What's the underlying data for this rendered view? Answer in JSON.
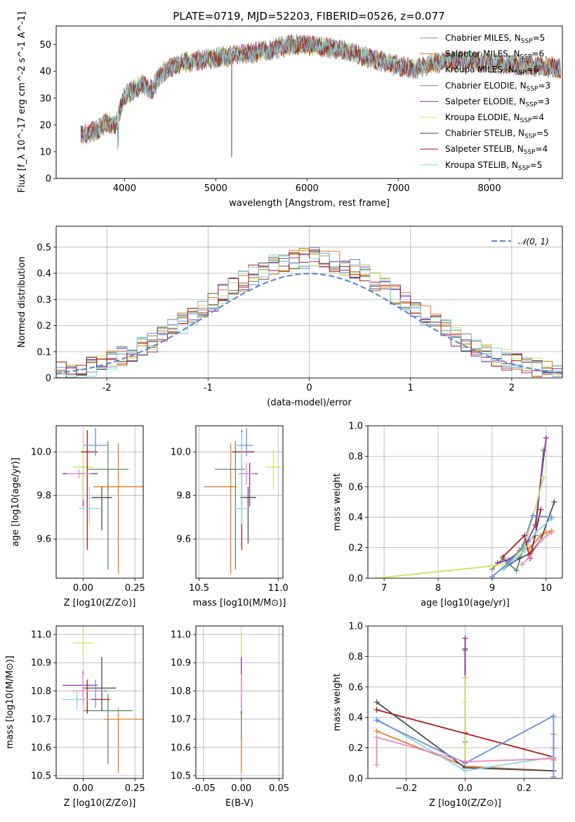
{
  "title": "PLATE=0719, MJD=52203, FIBERID=0526, z=0.077",
  "colors": [
    "#6a8fd8",
    "#e87d26",
    "#c77a1c",
    "#5f8e6a",
    "#8e30a9",
    "#cfe35a",
    "#4d4d4d",
    "#b01a1a",
    "#8ad6e8"
  ],
  "colors_panels": [
    "#e87d26",
    "#5f8e6a",
    "#8e30a9",
    "#cfe35a",
    "#4d4d4d",
    "#b01a1a",
    "#8ad6e8",
    "#6a8fd8",
    "#e78ac3"
  ],
  "chart_data": [
    {
      "id": "spectrum",
      "type": "line",
      "xlabel": "wavelength [Angstrom, rest frame]",
      "ylabel": "Flux [f_λ 10^-17 erg cm^-2 s^-1 A^-1]",
      "xlim": [
        3250,
        8800
      ],
      "ylim": [
        0,
        57
      ],
      "xticks": [
        4000,
        5000,
        6000,
        7000,
        8000
      ],
      "yticks": [
        0,
        10,
        20,
        30,
        40,
        50
      ],
      "grid": false,
      "legend_position": "top-right",
      "legend": [
        {
          "model": "Chabrier MILES",
          "n": "5"
        },
        {
          "model": "Salpeter MILES",
          "n": "6"
        },
        {
          "model": "Kroupa MILES",
          "n": "6"
        },
        {
          "model": "Chabrier ELODIE",
          "n": "3"
        },
        {
          "model": "Salpeter ELODIE",
          "n": "3"
        },
        {
          "model": "Kroupa ELODIE",
          "n": "4"
        },
        {
          "model": "Chabrier STELIB",
          "n": "5"
        },
        {
          "model": "Salpeter STELIB",
          "n": "4"
        },
        {
          "model": "Kroupa STELIB",
          "n": "5"
        }
      ],
      "continuum": [
        [
          3520,
          16
        ],
        [
          3600,
          17
        ],
        [
          3700,
          18
        ],
        [
          3800,
          21
        ],
        [
          3900,
          20
        ],
        [
          4000,
          31
        ],
        [
          4100,
          33
        ],
        [
          4200,
          35
        ],
        [
          4300,
          33
        ],
        [
          4400,
          39
        ],
        [
          4500,
          41
        ],
        [
          4600,
          43
        ],
        [
          4800,
          44
        ],
        [
          5000,
          45
        ],
        [
          5200,
          46
        ],
        [
          5400,
          47
        ],
        [
          5600,
          48
        ],
        [
          5800,
          50
        ],
        [
          6000,
          50
        ],
        [
          6200,
          49
        ],
        [
          6400,
          48
        ],
        [
          6600,
          46
        ],
        [
          6800,
          44
        ],
        [
          7000,
          42
        ],
        [
          7200,
          41
        ],
        [
          7400,
          43
        ],
        [
          7600,
          44
        ],
        [
          7800,
          44
        ],
        [
          8000,
          43
        ],
        [
          8200,
          43
        ],
        [
          8400,
          42
        ],
        [
          8600,
          42
        ],
        [
          8780,
          41
        ]
      ]
    },
    {
      "id": "residuals",
      "type": "histogram",
      "xlabel": "(data-model)/error",
      "ylabel": "Normed distribution",
      "xlim": [
        -2.5,
        2.5
      ],
      "ylim": [
        0,
        0.58
      ],
      "xticks": [
        -2,
        -1,
        0,
        1,
        2
      ],
      "yticks": [
        0.0,
        0.1,
        0.2,
        0.3,
        0.4,
        0.5
      ],
      "grid": true,
      "bin_width": 0.1,
      "legend": "𝒩(0, 1)",
      "normal_color": "#5b8bd9"
    },
    {
      "id": "age-vs-z",
      "type": "errorbar",
      "xlabel": "Z [log10(Z/Z⊙)]",
      "ylabel": "age [log10(age/yr)]",
      "xlim": [
        -0.13,
        0.29
      ],
      "ylim": [
        9.42,
        10.12
      ],
      "xticks": [
        -0.0,
        0.25
      ],
      "xtick_labels": [
        "0.00",
        "0.25"
      ],
      "yticks": [
        9.6,
        9.8,
        10.0
      ],
      "ytick_labels": [
        "9.6",
        "9.8",
        "10.0"
      ],
      "grid": true,
      "points": [
        {
          "x": 0.17,
          "y": 9.84,
          "xerr": [
            0.12,
            0.12
          ],
          "yerr": [
            0.4,
            0.2
          ]
        },
        {
          "x": 0.12,
          "y": 9.92,
          "xerr": [
            0.1,
            0.1
          ],
          "yerr": [
            0.46,
            0.13
          ]
        },
        {
          "x": 0.0,
          "y": 9.9,
          "xerr": [
            0.1,
            0.07
          ],
          "yerr": [
            0.15,
            0.05
          ]
        },
        {
          "x": 0.0,
          "y": 9.93,
          "xerr": [
            0.05,
            0.05
          ],
          "yerr": [
            0.15,
            0.08
          ]
        },
        {
          "x": 0.09,
          "y": 9.79,
          "xerr": [
            0.05,
            0.05
          ],
          "yerr": [
            0.15,
            0.05
          ]
        },
        {
          "x": 0.02,
          "y": 10.0,
          "xerr": [
            0.03,
            0.05
          ],
          "yerr": [
            0.45,
            0.1
          ]
        },
        {
          "x": 0.03,
          "y": 9.74,
          "xerr": [
            0.05,
            0.05
          ],
          "yerr": [
            0.07,
            0.1
          ]
        },
        {
          "x": 0.06,
          "y": 10.03,
          "xerr": [
            0.06,
            0.06
          ],
          "yerr": [
            0.05,
            0.08
          ]
        },
        {
          "x": -0.02,
          "y": 9.9,
          "xerr": [
            0.06,
            0.06
          ],
          "yerr": [
            0.02,
            0.02
          ]
        }
      ]
    },
    {
      "id": "age-vs-mass",
      "type": "errorbar",
      "xlabel": "mass [log10(M/M⊙)]",
      "ylabel": "",
      "xlim": [
        10.48,
        11.03
      ],
      "ylim": [
        9.42,
        10.12
      ],
      "xticks": [
        10.5,
        11.0
      ],
      "xtick_labels": [
        "10.5",
        "11.0"
      ],
      "yticks": [
        9.6,
        9.8,
        10.0
      ],
      "ytick_labels": [
        "9.6",
        "9.8",
        "10.0"
      ],
      "grid": true,
      "points": [
        {
          "x": 10.7,
          "y": 9.84,
          "xerr": [
            0.17,
            0.04
          ],
          "yerr": [
            0.4,
            0.2
          ]
        },
        {
          "x": 10.73,
          "y": 9.92,
          "xerr": [
            0.13,
            0.06
          ],
          "yerr": [
            0.46,
            0.13
          ]
        },
        {
          "x": 10.82,
          "y": 9.9,
          "xerr": [
            0.04,
            0.05
          ],
          "yerr": [
            0.15,
            0.05
          ]
        },
        {
          "x": 10.97,
          "y": 9.93,
          "xerr": [
            0.05,
            0.05
          ],
          "yerr": [
            0.1,
            0.08
          ]
        },
        {
          "x": 10.81,
          "y": 9.79,
          "xerr": [
            0.05,
            0.05
          ],
          "yerr": [
            0.21,
            0.05
          ]
        },
        {
          "x": 10.77,
          "y": 10.0,
          "xerr": [
            0.06,
            0.08
          ],
          "yerr": [
            0.45,
            0.1
          ]
        },
        {
          "x": 10.77,
          "y": 9.74,
          "xerr": [
            0.04,
            0.03
          ],
          "yerr": [
            0.07,
            0.35
          ]
        },
        {
          "x": 10.8,
          "y": 10.03,
          "xerr": [
            0.06,
            0.04
          ],
          "yerr": [
            0.05,
            0.08
          ]
        },
        {
          "x": 10.8,
          "y": 9.9,
          "xerr": [
            0.05,
            0.05
          ],
          "yerr": [
            0.05,
            0.05
          ]
        }
      ]
    },
    {
      "id": "weight-vs-age",
      "type": "line",
      "xlabel": "age [log10(age/yr)]",
      "ylabel": "mass weight",
      "xlim": [
        6.7,
        10.3
      ],
      "ylim": [
        0,
        1.0
      ],
      "xticks": [
        7,
        8,
        9,
        10
      ],
      "xtick_labels": [
        "7",
        "8",
        "9",
        "10"
      ],
      "yticks": [
        0.0,
        0.2,
        0.4,
        0.6,
        0.8,
        1.0
      ],
      "ytick_labels": [
        "0.0",
        "0.2",
        "0.4",
        "0.6",
        "0.8",
        "1.0"
      ],
      "grid": true,
      "series": [
        {
          "x": [
            9.3,
            9.5,
            9.7,
            9.9,
            10.0,
            10.1
          ],
          "y": [
            0.1,
            0.18,
            0.2,
            0.28,
            0.3,
            0.31
          ]
        },
        {
          "x": [
            9.0,
            9.2,
            9.45,
            9.6,
            9.8,
            9.95
          ],
          "y": [
            0.06,
            0.13,
            0.05,
            0.22,
            0.28,
            0.84
          ]
        },
        {
          "x": [
            9.1,
            9.3,
            9.6,
            9.8,
            10.0
          ],
          "y": [
            0.1,
            0.12,
            0.2,
            0.35,
            0.92
          ]
        },
        {
          "x": [
            6.85,
            9.0,
            9.3,
            9.6,
            9.95
          ],
          "y": [
            0.0,
            0.08,
            0.1,
            0.2,
            0.66
          ]
        },
        {
          "x": [
            9.2,
            9.5,
            9.7,
            9.9,
            10.15
          ],
          "y": [
            0.06,
            0.13,
            0.16,
            0.25,
            0.5
          ]
        },
        {
          "x": [
            9.2,
            9.6,
            9.7,
            9.9
          ],
          "y": [
            0.14,
            0.28,
            0.13,
            0.45
          ]
        },
        {
          "x": [
            9.2,
            9.4,
            9.6,
            9.8,
            10.1
          ],
          "y": [
            0.06,
            0.12,
            0.18,
            0.3,
            0.39
          ]
        },
        {
          "x": [
            9.0,
            9.3,
            9.55,
            9.75,
            10.1
          ],
          "y": [
            0.01,
            0.1,
            0.2,
            0.41,
            0.4
          ]
        },
        {
          "x": [
            9.55,
            9.7,
            9.9,
            10.1
          ],
          "y": [
            0.09,
            0.14,
            0.25,
            0.3
          ]
        }
      ]
    },
    {
      "id": "mass-vs-z",
      "type": "errorbar",
      "xlabel": "Z [log10(Z/Z⊙)]",
      "ylabel": "mass [log10(M/M⊙)]",
      "xlim": [
        -0.13,
        0.29
      ],
      "ylim": [
        10.49,
        11.03
      ],
      "xticks": [
        0.0,
        0.25
      ],
      "xtick_labels": [
        "0.00",
        "0.25"
      ],
      "yticks": [
        10.5,
        10.6,
        10.7,
        10.8,
        10.9,
        11.0
      ],
      "ytick_labels": [
        "10.5",
        "10.6",
        "10.7",
        "10.8",
        "10.9",
        "11.0"
      ],
      "grid": true,
      "points": [
        {
          "x": 0.17,
          "y": 10.7,
          "xerr": [
            0.07,
            0.12
          ],
          "yerr": [
            0.19,
            0.04
          ]
        },
        {
          "x": 0.12,
          "y": 10.73,
          "xerr": [
            0.12,
            0.12
          ],
          "yerr": [
            0.19,
            0.06
          ]
        },
        {
          "x": 0.0,
          "y": 10.82,
          "xerr": [
            0.1,
            0.07
          ],
          "yerr": [
            0.04,
            0.05
          ]
        },
        {
          "x": 0.0,
          "y": 10.97,
          "xerr": [
            0.05,
            0.05
          ],
          "yerr": [
            0.05,
            0.05
          ]
        },
        {
          "x": 0.09,
          "y": 10.81,
          "xerr": [
            0.09,
            0.07
          ],
          "yerr": [
            0.08,
            0.11
          ]
        },
        {
          "x": 0.02,
          "y": 10.77,
          "xerr": [
            0.05,
            0.11
          ],
          "yerr": [
            0.05,
            0.07
          ]
        },
        {
          "x": -0.03,
          "y": 10.77,
          "xerr": [
            0.07,
            0.07
          ],
          "yerr": [
            0.04,
            0.03
          ]
        },
        {
          "x": 0.06,
          "y": 10.8,
          "xerr": [
            0.06,
            0.06
          ],
          "yerr": [
            0.06,
            0.04
          ]
        },
        {
          "x": 0.0,
          "y": 10.8,
          "xerr": [
            0.05,
            0.1
          ],
          "yerr": [
            0.05,
            0.06
          ]
        }
      ]
    },
    {
      "id": "mass-vs-ebv",
      "type": "errorbar",
      "xlabel": "E(B-V)",
      "ylabel": "",
      "xlim": [
        -0.06,
        0.055
      ],
      "ylim": [
        10.49,
        11.03
      ],
      "xticks": [
        -0.05,
        0.0,
        0.05
      ],
      "xtick_labels": [
        "-0.05",
        "0.00",
        "0.05"
      ],
      "yticks": [
        10.5,
        10.6,
        10.7,
        10.8,
        10.9,
        11.0
      ],
      "ytick_labels": [
        "10.5",
        "10.6",
        "10.7",
        "10.8",
        "10.9",
        "11.0"
      ],
      "grid": true,
      "points": [
        {
          "x": 0.0,
          "y": 10.7,
          "xerr": [
            0,
            0
          ],
          "yerr": [
            0.19,
            0.1
          ]
        },
        {
          "x": 0.0,
          "y": 10.73,
          "xerr": [
            0,
            0
          ],
          "yerr": [
            0.1,
            0.08
          ]
        },
        {
          "x": 0.0,
          "y": 10.82,
          "xerr": [
            0,
            0
          ],
          "yerr": [
            0.04,
            0.1
          ]
        },
        {
          "x": 0.0,
          "y": 10.97,
          "xerr": [
            0,
            0
          ],
          "yerr": [
            0.05,
            0.04
          ]
        },
        {
          "x": 0.0,
          "y": 10.81,
          "xerr": [
            0,
            0
          ],
          "yerr": [
            0.08,
            0.06
          ]
        },
        {
          "x": 0.0,
          "y": 10.77,
          "xerr": [
            0,
            0
          ],
          "yerr": [
            0.05,
            0.07
          ]
        },
        {
          "x": 0.0,
          "y": 10.77,
          "xerr": [
            0,
            0
          ],
          "yerr": [
            0.04,
            0.03
          ]
        },
        {
          "x": 0.0,
          "y": 10.8,
          "xerr": [
            0,
            0
          ],
          "yerr": [
            0.06,
            0.04
          ]
        },
        {
          "x": 0.0,
          "y": 10.8,
          "xerr": [
            0,
            0
          ],
          "yerr": [
            0.05,
            0.06
          ]
        }
      ]
    },
    {
      "id": "weight-vs-z",
      "type": "line",
      "xlabel": "Z [log10(Z/Z⊙)]",
      "ylabel": "mass weight",
      "xlim": [
        -0.33,
        0.33
      ],
      "ylim": [
        0,
        1.0
      ],
      "xticks": [
        -0.2,
        0.0,
        0.2
      ],
      "xtick_labels": [
        "−0.2",
        "0.0",
        "0.2"
      ],
      "yticks": [
        0.0,
        0.2,
        0.4,
        0.6,
        0.8,
        1.0
      ],
      "ytick_labels": [
        "0.0",
        "0.2",
        "0.4",
        "0.6",
        "0.8",
        "1.0"
      ],
      "grid": true,
      "series": [
        {
          "x": [
            -0.3,
            0.0,
            0.3,
            0.3,
            0.3,
            0.3
          ],
          "y": [
            0.31,
            0.08,
            0.05,
            0.12,
            0.2,
            0.29
          ]
        },
        {
          "x": [
            0.0,
            0.0,
            0.0,
            0.0
          ],
          "y": [
            0.07,
            0.24,
            0.66,
            0.84
          ]
        },
        {
          "x": [
            0.0,
            0.0,
            0.0,
            0.0
          ],
          "y": [
            0.07,
            0.3,
            0.85,
            0.92
          ]
        },
        {
          "x": [
            0.0,
            0.0,
            0.0,
            0.0
          ],
          "y": [
            0.05,
            0.2,
            0.5,
            0.66
          ]
        },
        {
          "x": [
            -0.3,
            0.0,
            0.3
          ],
          "y": [
            0.5,
            0.07,
            0.05
          ]
        },
        {
          "x": [
            -0.3,
            0.3,
            0.3
          ],
          "y": [
            0.45,
            0.14,
            0.13
          ]
        },
        {
          "x": [
            -0.3,
            0.0,
            0.3
          ],
          "y": [
            0.39,
            0.05,
            0.14
          ]
        },
        {
          "x": [
            -0.3,
            0.0,
            0.3,
            0.3
          ],
          "y": [
            0.38,
            0.1,
            0.41,
            0.01
          ]
        },
        {
          "x": [
            -0.3,
            -0.3,
            0.0,
            0.3
          ],
          "y": [
            0.09,
            0.27,
            0.11,
            0.13
          ]
        }
      ]
    }
  ]
}
